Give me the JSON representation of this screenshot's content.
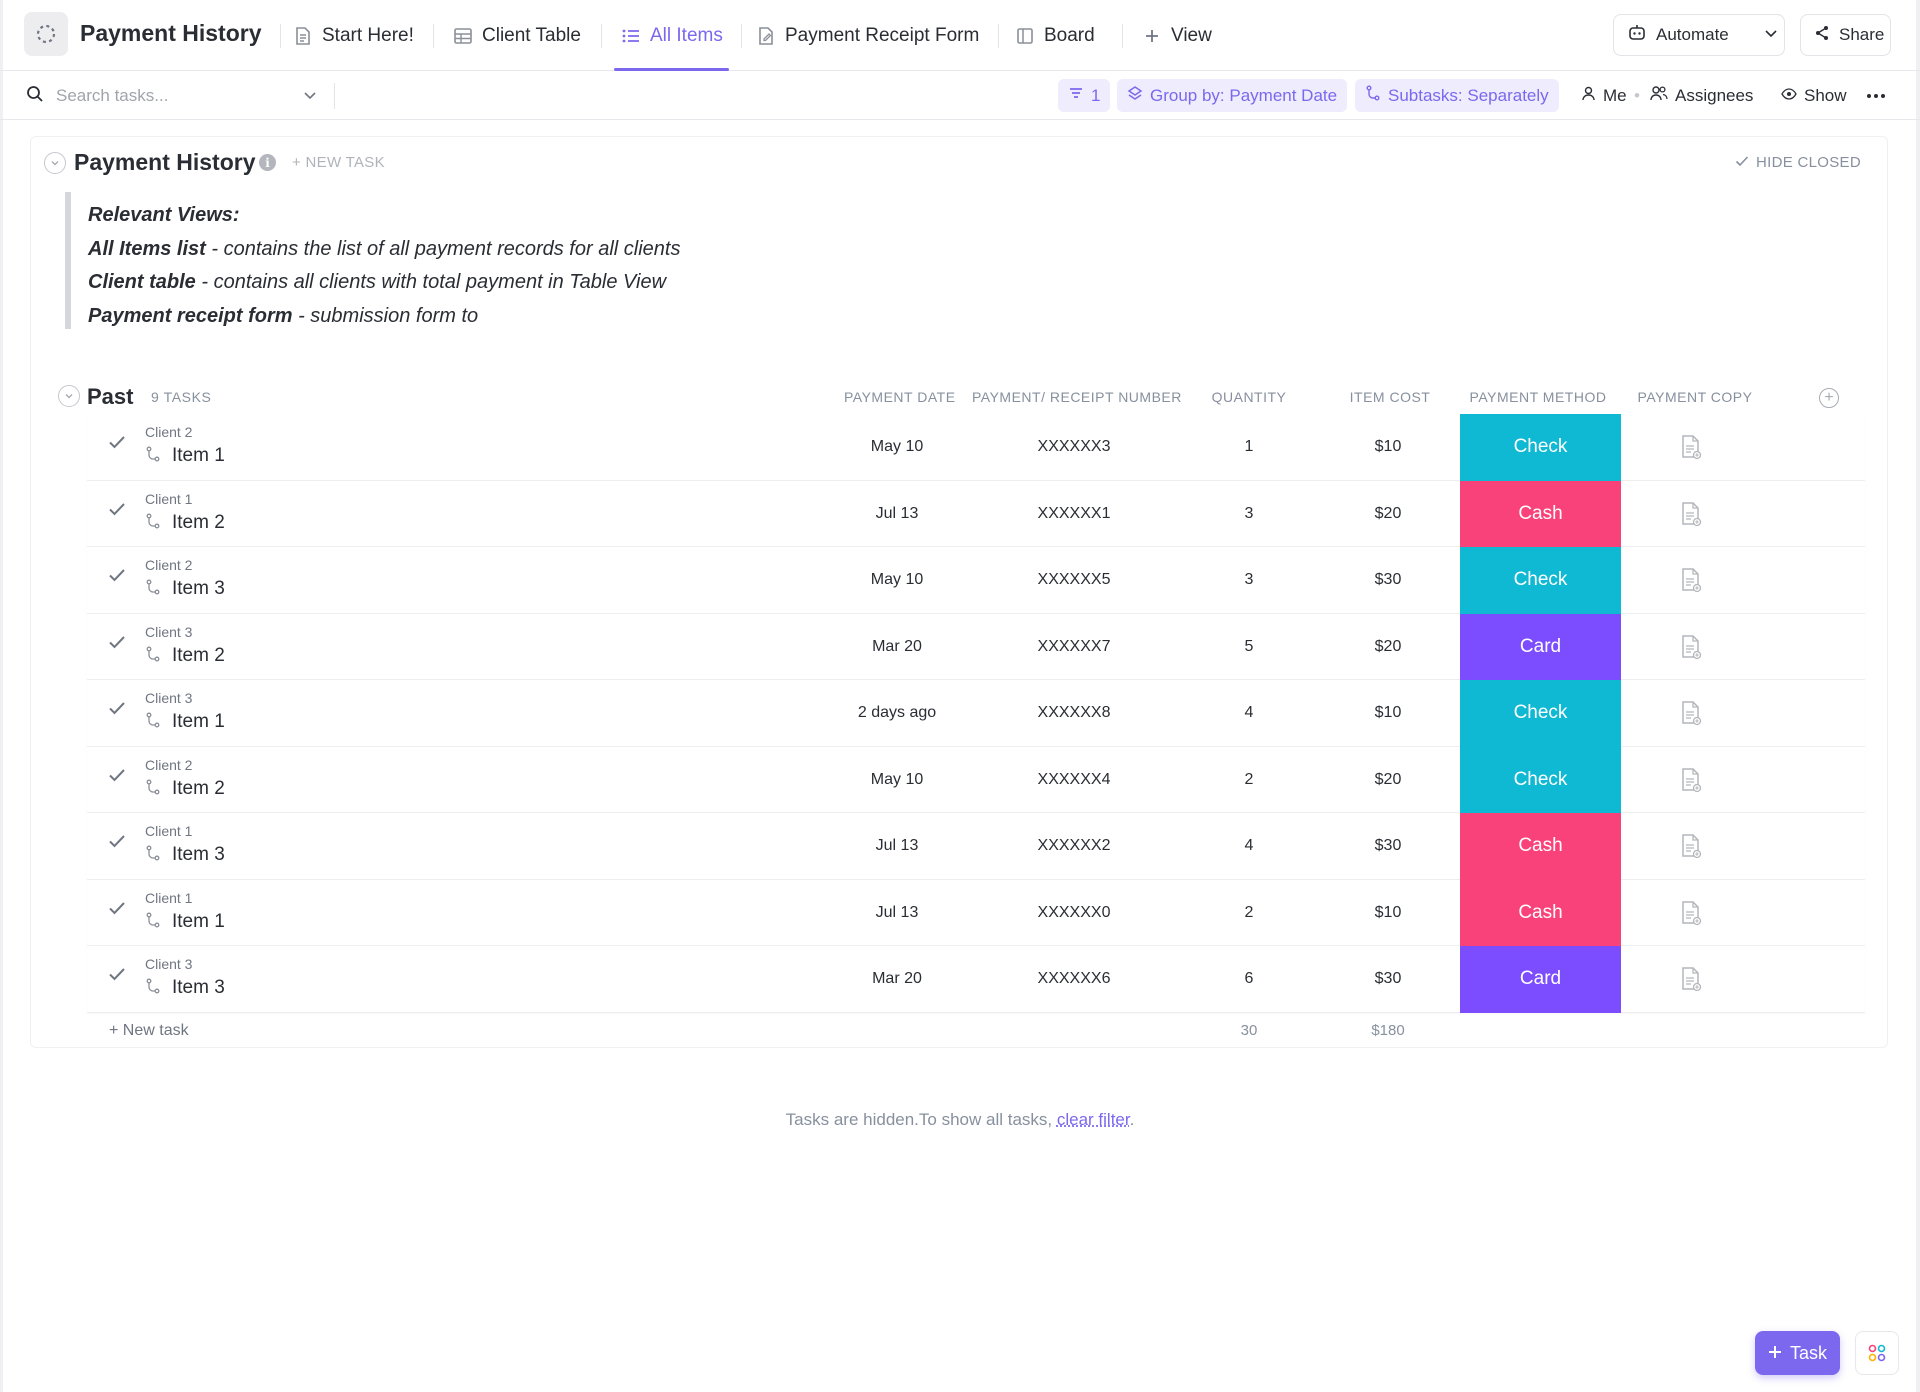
{
  "app": {
    "title": "Payment History"
  },
  "tabs": [
    {
      "label": "Start Here!",
      "icon": "doc-icon"
    },
    {
      "label": "Client Table",
      "icon": "table-icon"
    },
    {
      "label": "All Items",
      "icon": "list-icon",
      "active": true
    },
    {
      "label": "Payment Receipt Form",
      "icon": "form-icon"
    },
    {
      "label": "Board",
      "icon": "board-icon"
    },
    {
      "label": "View",
      "icon": "plus-icon"
    }
  ],
  "top_actions": {
    "automate": "Automate",
    "share": "Share"
  },
  "toolbar": {
    "search_placeholder": "Search tasks...",
    "filter_count": "1",
    "group_by": "Group by: Payment Date",
    "subtasks": "Subtasks: Separately",
    "me": "Me",
    "assignees": "Assignees",
    "show": "Show"
  },
  "list": {
    "title": "Payment History",
    "new_task": "+ NEW TASK",
    "hide_closed": "HIDE CLOSED",
    "description": {
      "heading": "Relevant Views:",
      "lines": [
        {
          "bold": "All Items list",
          "rest": " - contains the list of all payment records for all clients"
        },
        {
          "bold": "Client table",
          "rest": " - contains all clients with total payment in Table View"
        },
        {
          "bold": "Payment receipt form",
          "rest": " - submission form to"
        }
      ]
    }
  },
  "group": {
    "name": "Past",
    "count": "9 TASKS",
    "columns": {
      "date": "PAYMENT DATE",
      "receipt": "PAYMENT/ RECEIPT NUMBER",
      "quantity": "QUANTITY",
      "cost": "ITEM COST",
      "method": "PAYMENT METHOD",
      "copy": "PAYMENT COPY"
    },
    "rows": [
      {
        "client": "Client 2",
        "item": "Item 1",
        "date": "May 10",
        "receipt": "XXXXXX3",
        "qty": "1",
        "cost": "$10",
        "method": "Check"
      },
      {
        "client": "Client 1",
        "item": "Item 2",
        "date": "Jul 13",
        "receipt": "XXXXXX1",
        "qty": "3",
        "cost": "$20",
        "method": "Cash"
      },
      {
        "client": "Client 2",
        "item": "Item 3",
        "date": "May 10",
        "receipt": "XXXXXX5",
        "qty": "3",
        "cost": "$30",
        "method": "Check"
      },
      {
        "client": "Client 3",
        "item": "Item 2",
        "date": "Mar 20",
        "receipt": "XXXXXX7",
        "qty": "5",
        "cost": "$20",
        "method": "Card"
      },
      {
        "client": "Client 3",
        "item": "Item 1",
        "date": "2 days ago",
        "receipt": "XXXXXX8",
        "qty": "4",
        "cost": "$10",
        "method": "Check"
      },
      {
        "client": "Client 2",
        "item": "Item 2",
        "date": "May 10",
        "receipt": "XXXXXX4",
        "qty": "2",
        "cost": "$20",
        "method": "Check"
      },
      {
        "client": "Client 1",
        "item": "Item 3",
        "date": "Jul 13",
        "receipt": "XXXXXX2",
        "qty": "4",
        "cost": "$30",
        "method": "Cash"
      },
      {
        "client": "Client 1",
        "item": "Item 1",
        "date": "Jul 13",
        "receipt": "XXXXXX0",
        "qty": "2",
        "cost": "$10",
        "method": "Cash"
      },
      {
        "client": "Client 3",
        "item": "Item 3",
        "date": "Mar 20",
        "receipt": "XXXXXX6",
        "qty": "6",
        "cost": "$30",
        "method": "Card"
      }
    ],
    "footer": {
      "new_task": "+ New task",
      "qty_total": "30",
      "cost_total": "$180"
    }
  },
  "method_colors": {
    "Check": "#0fb8d3",
    "Cash": "#f9427a",
    "Card": "#7c4dff"
  },
  "hidden_note": {
    "text": "Tasks are hidden.To show all tasks, ",
    "link": "clear filter",
    "end": "."
  },
  "fab": {
    "task": "Task"
  },
  "colors": {
    "accent": "#7b68ee"
  }
}
